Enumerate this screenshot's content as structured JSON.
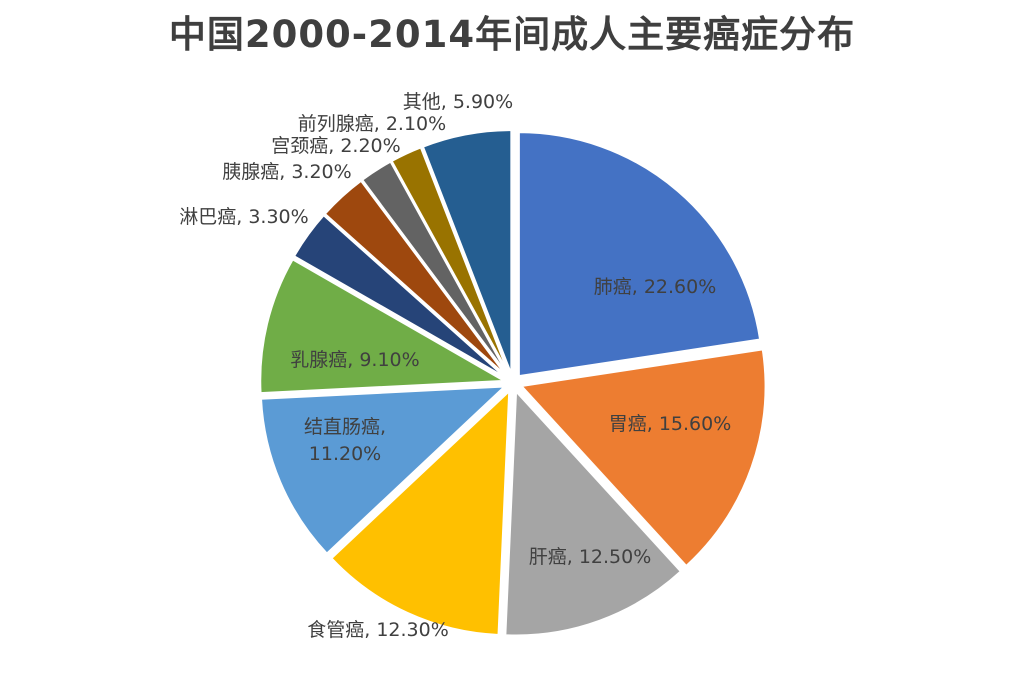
{
  "chart_data": {
    "type": "pie",
    "title": "中国2000-2014年间成人主要癌症分布",
    "slices": [
      {
        "name": "肺癌",
        "value": 22.6,
        "text": "肺癌, 22.60%",
        "color": "#4472C4"
      },
      {
        "name": "胃癌",
        "value": 15.6,
        "text": "胃癌, 15.60%",
        "color": "#ED7D31"
      },
      {
        "name": "肝癌",
        "value": 12.5,
        "text": "肝癌, 12.50%",
        "color": "#A5A5A5"
      },
      {
        "name": "食管癌",
        "value": 12.3,
        "text": "食管癌, 12.30%",
        "color": "#FFC000"
      },
      {
        "name": "结直肠癌",
        "value": 11.2,
        "text": [
          "结直肠癌,",
          "11.20%"
        ],
        "color": "#5B9BD5"
      },
      {
        "name": "乳腺癌",
        "value": 9.1,
        "text": "乳腺癌, 9.10%",
        "color": "#70AD47"
      },
      {
        "name": "淋巴癌",
        "value": 3.3,
        "text": "淋巴癌, 3.30%",
        "color": "#264478"
      },
      {
        "name": "胰腺癌",
        "value": 3.2,
        "text": "胰腺癌, 3.20%",
        "color": "#9E480E"
      },
      {
        "name": "宫颈癌",
        "value": 2.2,
        "text": "宫颈癌, 2.20%",
        "color": "#636363"
      },
      {
        "name": "前列腺癌",
        "value": 2.1,
        "text": "前列腺癌, 2.10%",
        "color": "#997300"
      },
      {
        "name": "其他",
        "value": 5.9,
        "text": "其他, 5.90%",
        "color": "#255E91"
      }
    ]
  }
}
